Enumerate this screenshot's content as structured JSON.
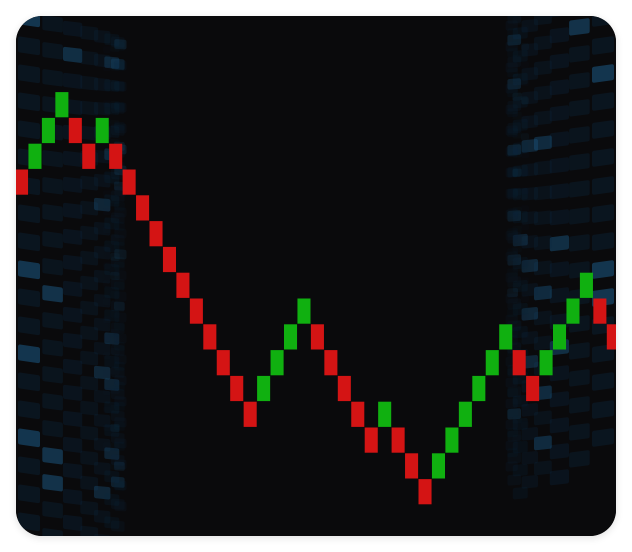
{
  "colors": {
    "background": "#0a0a0c",
    "up": "#10b010",
    "down": "#d41414",
    "panel_base": "#0b2740",
    "panel_accent": "#1b5a85"
  },
  "chart_data": {
    "type": "renko",
    "title": "",
    "xlabel": "",
    "ylabel": "",
    "grid": false,
    "legend": "none",
    "box_size": 1,
    "start_level": 0,
    "bricks": [
      "down",
      "up",
      "up",
      "up",
      "down",
      "down",
      "up",
      "down",
      "down",
      "down",
      "down",
      "down",
      "down",
      "down",
      "down",
      "down",
      "down",
      "down",
      "up",
      "up",
      "up",
      "up",
      "down",
      "down",
      "down",
      "down",
      "down",
      "up",
      "down",
      "down",
      "down",
      "up",
      "up",
      "up",
      "up",
      "up",
      "up",
      "down",
      "down",
      "up",
      "up",
      "up",
      "up",
      "down",
      "down",
      "down",
      "up"
    ]
  }
}
